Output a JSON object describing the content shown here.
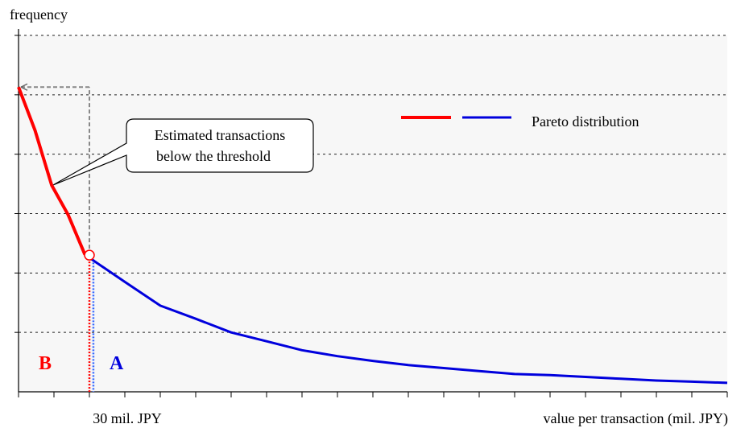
{
  "chart_data": {
    "type": "line",
    "title": "",
    "xlabel": "value per transaction (mil. JPY)",
    "ylabel": "frequency",
    "grid": true,
    "legend": {
      "placement": "top-right",
      "label": "Pareto distribution"
    },
    "threshold_label": "30 mil. JPY",
    "threshold_value": 30,
    "xlim": [
      0,
      300
    ],
    "ylim": [
      0,
      6
    ],
    "x_tick_values": [
      0,
      15,
      30,
      45,
      60,
      75,
      90,
      105,
      120,
      135,
      150,
      165,
      180,
      195,
      210,
      225,
      240,
      255,
      270,
      285,
      300
    ],
    "y_tick_values": [
      1,
      2,
      3,
      4,
      5,
      6
    ],
    "series": [
      {
        "role": "estimated",
        "values": [
          {
            "x": 0,
            "y": 5.13
          },
          {
            "x": 7,
            "y": 4.4
          },
          {
            "x": 14,
            "y": 3.48
          },
          {
            "x": 21,
            "y": 2.98
          },
          {
            "x": 28,
            "y": 2.32
          },
          {
            "x": 30,
            "y": 2.3
          }
        ]
      },
      {
        "role": "observed",
        "values": [
          {
            "x": 31,
            "y": 2.23
          },
          {
            "x": 45,
            "y": 1.85
          },
          {
            "x": 60,
            "y": 1.45
          },
          {
            "x": 75,
            "y": 1.23
          },
          {
            "x": 90,
            "y": 1.0
          },
          {
            "x": 105,
            "y": 0.85
          },
          {
            "x": 120,
            "y": 0.7
          },
          {
            "x": 135,
            "y": 0.6
          },
          {
            "x": 150,
            "y": 0.52
          },
          {
            "x": 165,
            "y": 0.45
          },
          {
            "x": 180,
            "y": 0.4
          },
          {
            "x": 195,
            "y": 0.35
          },
          {
            "x": 210,
            "y": 0.3
          },
          {
            "x": 225,
            "y": 0.28
          },
          {
            "x": 240,
            "y": 0.25
          },
          {
            "x": 255,
            "y": 0.22
          },
          {
            "x": 270,
            "y": 0.19
          },
          {
            "x": 285,
            "y": 0.17
          },
          {
            "x": 300,
            "y": 0.15
          }
        ]
      }
    ],
    "annotations": {
      "callout_text": "Estimated transactions below the threshold",
      "callout_line1": "Estimated transactions",
      "callout_line2": "below the threshold",
      "region_b_label": "B",
      "region_a_label": "A"
    },
    "colors": {
      "estimated": "#ff0000",
      "observed": "#0000dd",
      "grid": "#222222",
      "plot_bg": "#f7f7f7",
      "guide": "#888888"
    }
  }
}
